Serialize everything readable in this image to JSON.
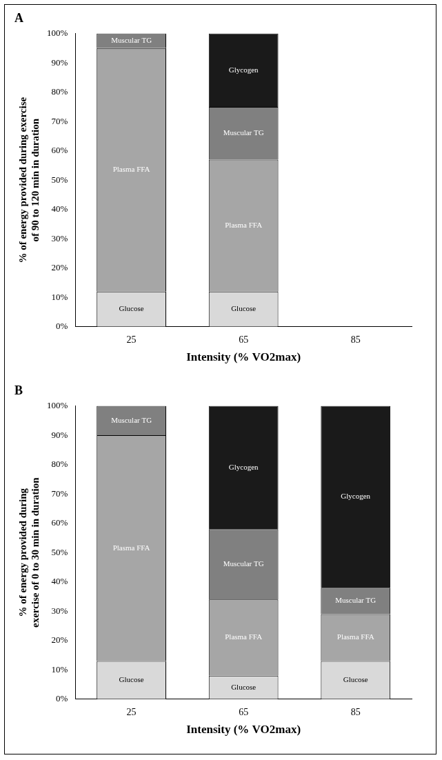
{
  "chart_data": [
    {
      "type": "bar",
      "stacked": true,
      "grid": false,
      "title": "A",
      "x_label": "Intensity (% VO2max)",
      "y_label": "% of energy provided during exercise of 90 to 120 min in duration",
      "categories": [
        "25",
        "65",
        "85"
      ],
      "ylim": [
        0,
        100
      ],
      "yticks": [
        {
          "value": 0,
          "label": "0%"
        },
        {
          "value": 10,
          "label": "10%"
        },
        {
          "value": 20,
          "label": "20%"
        },
        {
          "value": 30,
          "label": "30%"
        },
        {
          "value": 40,
          "label": "40%"
        },
        {
          "value": 50,
          "label": "50%"
        },
        {
          "value": 60,
          "label": "60%"
        },
        {
          "value": 70,
          "label": "70%"
        },
        {
          "value": 80,
          "label": "80%"
        },
        {
          "value": 90,
          "label": "90%"
        },
        {
          "value": 100,
          "label": "100%"
        }
      ],
      "series": [
        {
          "name": "Glucose",
          "color": "#d9d9d9",
          "values": [
            12,
            12,
            null
          ]
        },
        {
          "name": "Plasma FFA",
          "color": "#a6a6a6",
          "values": [
            83,
            45,
            null
          ]
        },
        {
          "name": "Muscular TG",
          "color": "#808080",
          "values": [
            5,
            18,
            null
          ]
        },
        {
          "name": "Glycogen",
          "color": "#1a1a1a",
          "values": [
            0,
            25,
            null
          ]
        }
      ]
    },
    {
      "type": "bar",
      "stacked": true,
      "grid": false,
      "title": "B",
      "x_label": "Intensity (% VO2max)",
      "y_label": "% of energy provided during exercise of 0 to 30 min in duration",
      "categories": [
        "25",
        "65",
        "85"
      ],
      "ylim": [
        0,
        100
      ],
      "yticks": [
        {
          "value": 0,
          "label": "0%"
        },
        {
          "value": 10,
          "label": "10%"
        },
        {
          "value": 20,
          "label": "20%"
        },
        {
          "value": 30,
          "label": "30%"
        },
        {
          "value": 40,
          "label": "40%"
        },
        {
          "value": 50,
          "label": "50%"
        },
        {
          "value": 60,
          "label": "60%"
        },
        {
          "value": 70,
          "label": "70%"
        },
        {
          "value": 80,
          "label": "80%"
        },
        {
          "value": 90,
          "label": "90%"
        },
        {
          "value": 100,
          "label": "100%"
        }
      ],
      "series": [
        {
          "name": "Glucose",
          "color": "#d9d9d9",
          "values": [
            13,
            8,
            13
          ]
        },
        {
          "name": "Plasma FFA",
          "color": "#a6a6a6",
          "values": [
            77,
            26,
            16
          ]
        },
        {
          "name": "Muscular TG",
          "color": "#808080",
          "values": [
            10,
            24,
            9
          ]
        },
        {
          "name": "Glycogen",
          "color": "#1a1a1a",
          "values": [
            0,
            42,
            62
          ]
        }
      ]
    }
  ]
}
